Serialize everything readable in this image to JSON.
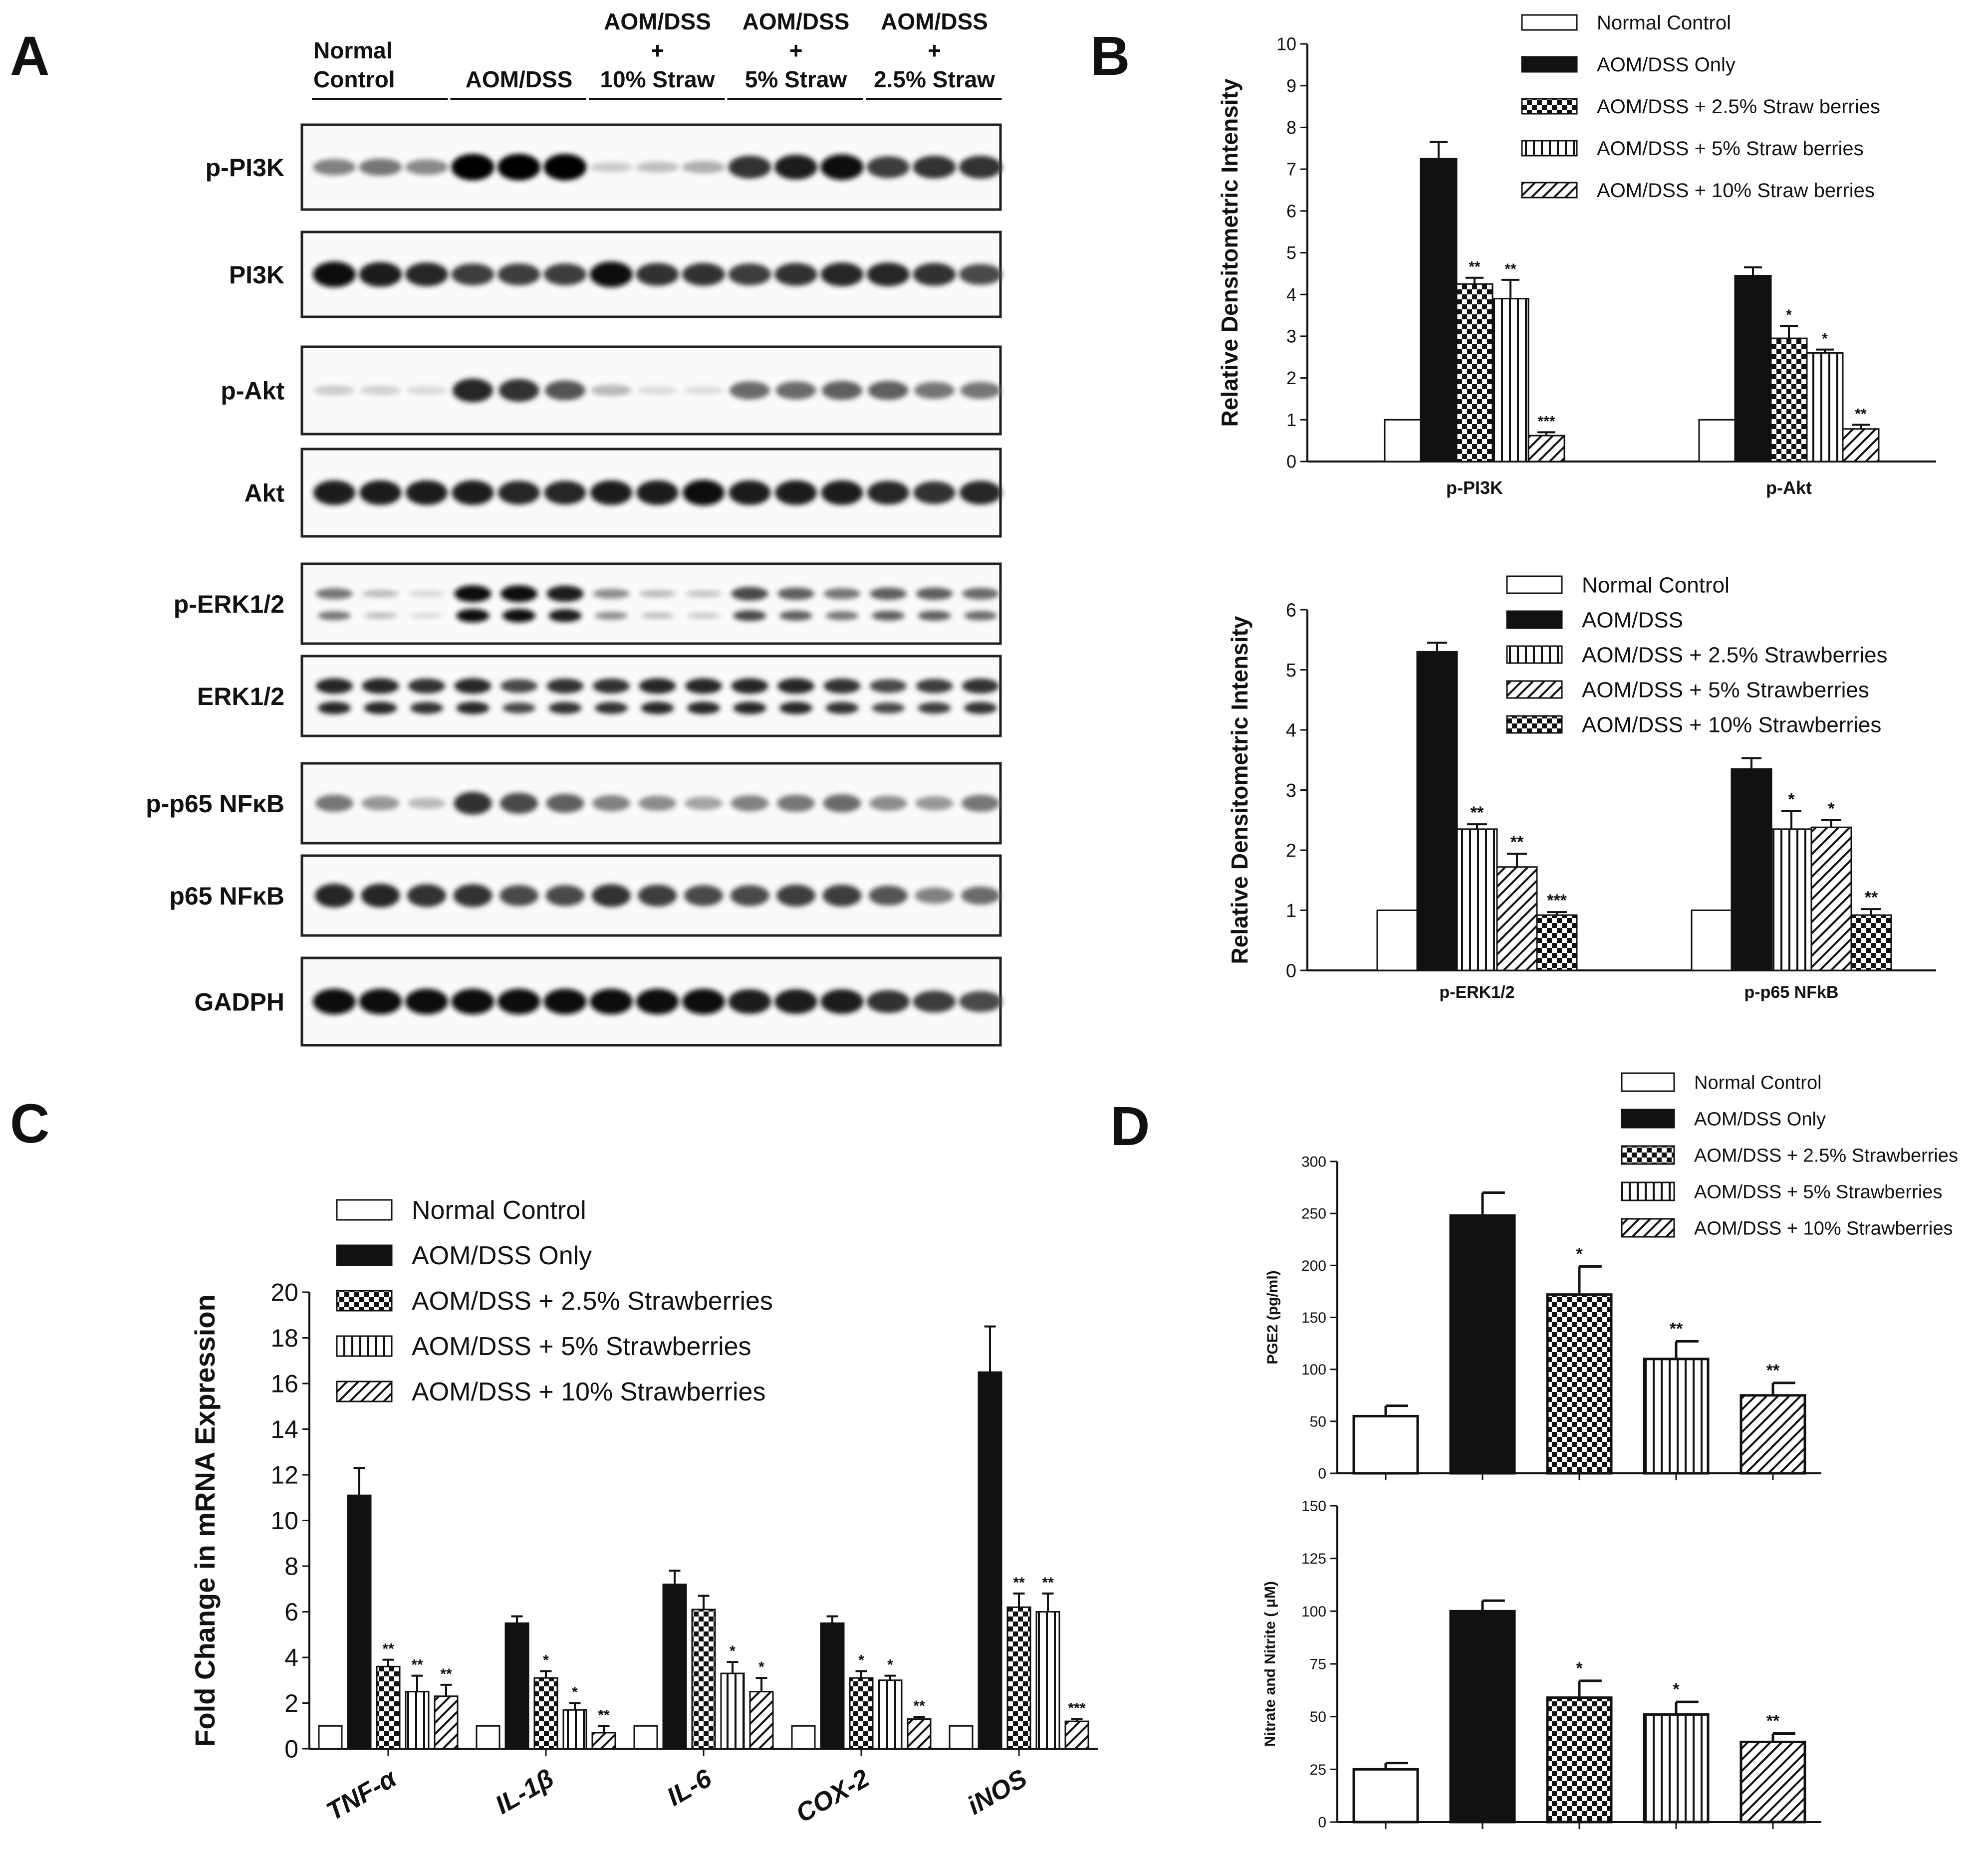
{
  "panel_letters": [
    "A",
    "B",
    "C",
    "D"
  ],
  "blot": {
    "group_labels": [
      [
        "Normal",
        "Control"
      ],
      [
        "AOM/DSS"
      ],
      [
        "AOM/DSS",
        "+",
        "10% Straw"
      ],
      [
        "AOM/DSS",
        "+",
        "5% Straw"
      ],
      [
        "AOM/DSS",
        "+",
        "2.5% Straw"
      ]
    ],
    "rows": [
      {
        "label": "p-PI3K",
        "intensity": [
          0.45,
          0.5,
          0.42,
          1.0,
          1.0,
          1.0,
          0.12,
          0.18,
          0.25,
          0.8,
          0.9,
          0.95,
          0.75,
          0.8,
          0.8
        ]
      },
      {
        "label": "PI3K",
        "intensity": [
          0.95,
          0.9,
          0.85,
          0.75,
          0.75,
          0.75,
          0.95,
          0.8,
          0.8,
          0.75,
          0.8,
          0.85,
          0.85,
          0.8,
          0.7
        ]
      },
      {
        "label": "p-Akt",
        "intensity": [
          0.12,
          0.1,
          0.06,
          0.85,
          0.8,
          0.65,
          0.2,
          0.05,
          0.04,
          0.55,
          0.55,
          0.6,
          0.6,
          0.5,
          0.5
        ]
      },
      {
        "label": "Akt",
        "intensity": [
          0.9,
          0.9,
          0.9,
          0.9,
          0.85,
          0.85,
          0.9,
          0.9,
          0.95,
          0.9,
          0.9,
          0.9,
          0.85,
          0.8,
          0.85
        ]
      },
      {
        "label": "p-ERK1/2",
        "intensity": [
          0.5,
          0.2,
          0.08,
          0.95,
          0.95,
          0.9,
          0.4,
          0.2,
          0.15,
          0.7,
          0.6,
          0.5,
          0.6,
          0.6,
          0.55
        ]
      },
      {
        "label": "ERK1/2",
        "intensity": [
          0.85,
          0.85,
          0.8,
          0.85,
          0.7,
          0.8,
          0.8,
          0.85,
          0.85,
          0.85,
          0.85,
          0.8,
          0.7,
          0.75,
          0.8
        ]
      },
      {
        "label": "p-p65 NFκB",
        "intensity": [
          0.5,
          0.35,
          0.2,
          0.8,
          0.7,
          0.6,
          0.45,
          0.4,
          0.3,
          0.45,
          0.5,
          0.55,
          0.4,
          0.35,
          0.5
        ]
      },
      {
        "label": "p65 NFκB",
        "intensity": [
          0.85,
          0.85,
          0.8,
          0.8,
          0.7,
          0.7,
          0.8,
          0.75,
          0.7,
          0.7,
          0.75,
          0.75,
          0.65,
          0.45,
          0.55
        ]
      },
      {
        "label": "GADPH",
        "intensity": [
          0.95,
          0.95,
          0.95,
          0.95,
          0.95,
          0.95,
          0.95,
          0.95,
          0.95,
          0.9,
          0.9,
          0.9,
          0.8,
          0.75,
          0.7
        ]
      }
    ]
  },
  "chart_data": [
    {
      "id": "B1",
      "type": "bar",
      "ylabel": "Relative Densitometric Intensity",
      "ylim": [
        0,
        10
      ],
      "yticks": [
        "0",
        "1",
        "2",
        "3",
        "4",
        "5",
        "6",
        "7",
        "8",
        "9",
        "10"
      ],
      "categories": [
        "p-PI3K",
        "p-Akt"
      ],
      "series": [
        {
          "name": "Normal Control",
          "pattern": "white",
          "values": [
            1,
            1
          ],
          "errors": [
            0,
            0
          ],
          "sig": [
            "",
            ""
          ]
        },
        {
          "name": "AOM/DSS Only",
          "pattern": "black",
          "values": [
            7.25,
            4.45
          ],
          "errors": [
            0.4,
            0.2
          ],
          "sig": [
            "",
            ""
          ]
        },
        {
          "name": "AOM/DSS + 2.5% Straw berries",
          "pattern": "check",
          "values": [
            4.25,
            2.95
          ],
          "errors": [
            0.15,
            0.3
          ],
          "sig": [
            "**",
            "*"
          ]
        },
        {
          "name": "AOM/DSS + 5% Straw berries",
          "pattern": "vlines",
          "values": [
            3.9,
            2.6
          ],
          "errors": [
            0.45,
            0.08
          ],
          "sig": [
            "**",
            "*"
          ]
        },
        {
          "name": "AOM/DSS + 10% Straw berries",
          "pattern": "diag",
          "values": [
            0.62,
            0.78
          ],
          "errors": [
            0.08,
            0.1
          ],
          "sig": [
            "***",
            "**"
          ]
        }
      ]
    },
    {
      "id": "B2",
      "type": "bar",
      "ylabel": "Relative Densitometric Intensity",
      "ylim": [
        0,
        6
      ],
      "yticks": [
        "0",
        "1",
        "2",
        "3",
        "4",
        "5",
        "6"
      ],
      "categories": [
        "p-ERK1/2",
        "p-p65 NFkB"
      ],
      "series": [
        {
          "name": "Normal Control",
          "pattern": "white",
          "values": [
            1,
            1
          ],
          "errors": [
            0,
            0
          ],
          "sig": [
            "",
            ""
          ]
        },
        {
          "name": "AOM/DSS",
          "pattern": "black",
          "values": [
            5.3,
            3.35
          ],
          "errors": [
            0.15,
            0.18
          ],
          "sig": [
            "",
            ""
          ]
        },
        {
          "name": "AOM/DSS + 2.5% Strawberries",
          "pattern": "vlines",
          "values": [
            2.35,
            2.35
          ],
          "errors": [
            0.08,
            0.3
          ],
          "sig": [
            "**",
            "*"
          ]
        },
        {
          "name": "AOM/DSS + 5% Strawberries",
          "pattern": "diag",
          "values": [
            1.72,
            2.38
          ],
          "errors": [
            0.22,
            0.12
          ],
          "sig": [
            "**",
            "*"
          ]
        },
        {
          "name": "AOM/DSS + 10% Strawberries",
          "pattern": "check",
          "values": [
            0.92,
            0.92
          ],
          "errors": [
            0.05,
            0.1
          ],
          "sig": [
            "***",
            "**"
          ]
        }
      ]
    },
    {
      "id": "C",
      "type": "bar",
      "ylabel": "Fold Change in mRNA Expression",
      "ylim": [
        0,
        20
      ],
      "yticks": [
        "0",
        "2",
        "4",
        "6",
        "8",
        "10",
        "12",
        "14",
        "16",
        "18",
        "20"
      ],
      "categories": [
        "TNF-α",
        "IL-1β",
        "IL-6",
        "COX-2",
        "iNOS"
      ],
      "series": [
        {
          "name": "Normal Control",
          "pattern": "white",
          "values": [
            1,
            1,
            1,
            1,
            1
          ],
          "errors": [
            0,
            0,
            0,
            0,
            0
          ],
          "sig": [
            "",
            "",
            "",
            "",
            ""
          ]
        },
        {
          "name": "AOM/DSS Only",
          "pattern": "black",
          "values": [
            11.1,
            5.5,
            7.2,
            5.5,
            16.5
          ],
          "errors": [
            1.2,
            0.3,
            0.6,
            0.3,
            2.0
          ],
          "sig": [
            "",
            "",
            "",
            "",
            ""
          ]
        },
        {
          "name": "AOM/DSS + 2.5% Strawberries",
          "pattern": "check",
          "values": [
            3.6,
            3.1,
            6.1,
            3.1,
            6.2
          ],
          "errors": [
            0.3,
            0.3,
            0.6,
            0.3,
            0.6
          ],
          "sig": [
            "**",
            "*",
            "",
            "*",
            "**"
          ]
        },
        {
          "name": "AOM/DSS + 5% Strawberries",
          "pattern": "vlines",
          "values": [
            2.5,
            1.7,
            3.3,
            3.0,
            6.0
          ],
          "errors": [
            0.7,
            0.3,
            0.5,
            0.2,
            0.8
          ],
          "sig": [
            "**",
            "*",
            "*",
            "*",
            "**"
          ]
        },
        {
          "name": "AOM/DSS + 10% Strawberries",
          "pattern": "diag",
          "values": [
            2.3,
            0.7,
            2.5,
            1.3,
            1.2
          ],
          "errors": [
            0.5,
            0.3,
            0.6,
            0.1,
            0.1
          ],
          "sig": [
            "**",
            "**",
            "*",
            "**",
            "***"
          ]
        }
      ]
    },
    {
      "id": "D1",
      "type": "bar",
      "ylabel": "PGE2 (pg/ml)",
      "ylim": [
        0,
        300
      ],
      "yticks": [
        "0",
        "50",
        "100",
        "150",
        "200",
        "250",
        "300"
      ],
      "categories": [
        "Normal Control",
        "AOM/DSS Only",
        "AOM/DSS + 2.5% Strawberries",
        "AOM/DSS + 5% Strawberries",
        "AOM/DSS + 10% Strawberries"
      ],
      "series": [
        {
          "name": "PGE2",
          "patterns": [
            "white",
            "black",
            "check",
            "vlines",
            "diag"
          ],
          "values": [
            55,
            248,
            172,
            110,
            75
          ],
          "errors": [
            10,
            22,
            27,
            17,
            12
          ],
          "sig": [
            "",
            "",
            "*",
            "**",
            "**"
          ]
        }
      ],
      "legend": [
        "Normal Control",
        "AOM/DSS Only",
        "AOM/DSS + 2.5% Strawberries",
        "AOM/DSS + 5% Strawberries",
        "AOM/DSS + 10% Strawberries"
      ]
    },
    {
      "id": "D2",
      "type": "bar",
      "ylabel": "Nitrate and Nitrite ( μM)",
      "ylim": [
        0,
        150
      ],
      "yticks": [
        "0",
        "25",
        "50",
        "75",
        "100",
        "125",
        "150"
      ],
      "categories": [
        "Normal Control",
        "AOM/DSS Only",
        "AOM/DSS + 2.5% Strawberries",
        "AOM/DSS + 5% Strawberries",
        "AOM/DSS + 10% Strawberries"
      ],
      "series": [
        {
          "name": "Nitrate and Nitrite",
          "patterns": [
            "white",
            "black",
            "check",
            "vlines",
            "diag"
          ],
          "values": [
            25,
            100,
            59,
            51,
            38
          ],
          "errors": [
            3,
            5,
            8,
            6,
            4
          ],
          "sig": [
            "",
            "",
            "*",
            "*",
            "**"
          ]
        }
      ]
    }
  ]
}
